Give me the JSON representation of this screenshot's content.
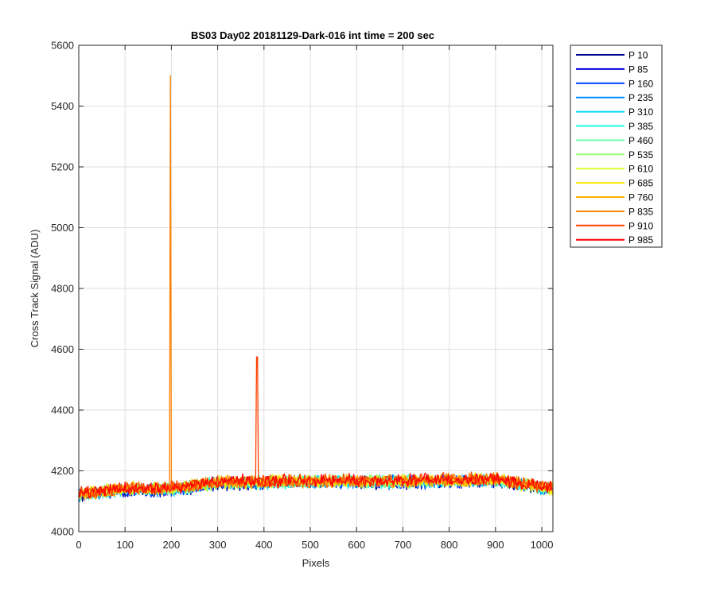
{
  "chart_data": {
    "type": "line",
    "title": "BS03 Day02 20181129-Dark-016 int time = 200 sec",
    "xlabel": "Pixels",
    "ylabel": "Cross Track Signal (ADU)",
    "xlim": [
      0,
      1024
    ],
    "ylim": [
      4000,
      5600
    ],
    "xticks": [
      0,
      100,
      200,
      300,
      400,
      500,
      600,
      700,
      800,
      900,
      1000
    ],
    "yticks": [
      4000,
      4200,
      4400,
      4600,
      4800,
      5000,
      5200,
      5400,
      5600
    ],
    "grid": true,
    "legend_position": "outside-top-right",
    "baseline": [
      {
        "x": 0,
        "y": 4120
      },
      {
        "x": 100,
        "y": 4140
      },
      {
        "x": 200,
        "y": 4140
      },
      {
        "x": 300,
        "y": 4160
      },
      {
        "x": 500,
        "y": 4165
      },
      {
        "x": 700,
        "y": 4165
      },
      {
        "x": 900,
        "y": 4170
      },
      {
        "x": 1024,
        "y": 4140
      }
    ],
    "noise_amplitude": 25,
    "spikes": [
      {
        "x": 198,
        "y": 5500,
        "series": "P 835"
      },
      {
        "x": 385,
        "y": 4575,
        "series": "P 910"
      }
    ],
    "series": [
      {
        "name": "P 10",
        "color": "#00008f"
      },
      {
        "name": "P 85",
        "color": "#0000e0"
      },
      {
        "name": "P 160",
        "color": "#0040ff"
      },
      {
        "name": "P 235",
        "color": "#0090ff"
      },
      {
        "name": "P 310",
        "color": "#00d8ff"
      },
      {
        "name": "P 385",
        "color": "#20ffe0"
      },
      {
        "name": "P 460",
        "color": "#70ffb0"
      },
      {
        "name": "P 535",
        "color": "#a0ff70"
      },
      {
        "name": "P 610",
        "color": "#d8ff30"
      },
      {
        "name": "P 685",
        "color": "#ffe800"
      },
      {
        "name": "P 760",
        "color": "#ffb000"
      },
      {
        "name": "P 835",
        "color": "#ff8000"
      },
      {
        "name": "P 910",
        "color": "#ff4000"
      },
      {
        "name": "P 985",
        "color": "#ff0000"
      }
    ]
  }
}
